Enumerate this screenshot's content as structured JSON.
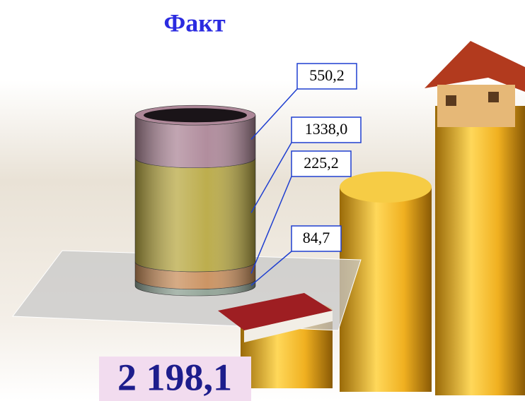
{
  "chart_data": {
    "type": "stacked-cylinder",
    "title": "Факт",
    "series": [
      {
        "color": "#8fa294",
        "values": [
          84.7
        ],
        "value_labels": [
          "84,7"
        ]
      },
      {
        "color": "#c98f5c",
        "values": [
          225.2
        ],
        "value_labels": [
          "225,2"
        ]
      },
      {
        "color": "#b9a944",
        "values": [
          1338.0
        ],
        "value_labels": [
          "1338,0"
        ]
      },
      {
        "color": "#ad8798",
        "values": [
          550.2
        ],
        "value_labels": [
          "550,2"
        ]
      }
    ],
    "annotations": [
      "2 198,1"
    ]
  }
}
